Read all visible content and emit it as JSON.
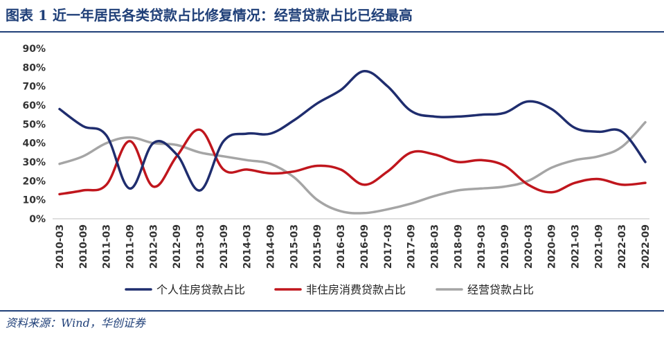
{
  "header": {
    "title": "图表 1 近一年居民各类贷款占比修复情况：经营贷款占比已经最高"
  },
  "footer": {
    "source": "资料来源：Wind，华创证券"
  },
  "colors": {
    "accent": "#1f3f78"
  },
  "chart_data": {
    "type": "line",
    "title": "",
    "xlabel": "",
    "ylabel": "",
    "ylim": [
      0,
      90
    ],
    "yticks": [
      "0%",
      "10%",
      "20%",
      "30%",
      "40%",
      "50%",
      "60%",
      "70%",
      "80%",
      "90%"
    ],
    "x": [
      "2010-03",
      "2010-09",
      "2011-03",
      "2011-09",
      "2012-03",
      "2012-09",
      "2013-03",
      "2013-09",
      "2014-03",
      "2014-09",
      "2015-03",
      "2015-09",
      "2016-03",
      "2016-09",
      "2017-03",
      "2017-09",
      "2018-03",
      "2018-09",
      "2019-03",
      "2019-09",
      "2020-03",
      "2020-09",
      "2021-03",
      "2021-09",
      "2022-03",
      "2022-09"
    ],
    "grid": false,
    "legend_position": "bottom",
    "series": [
      {
        "name": "个人住房贷款占比",
        "color": "#1f2d6e",
        "values": [
          58,
          49,
          44,
          16,
          40,
          34,
          15,
          41,
          45,
          45,
          52,
          61,
          68,
          78,
          70,
          57,
          54,
          54,
          55,
          56,
          62,
          58,
          48,
          46,
          46,
          30
        ]
      },
      {
        "name": "非住房消费贷款占比",
        "color": "#c0161d",
        "values": [
          13,
          15,
          18,
          41,
          17,
          33,
          47,
          26,
          26,
          24,
          25,
          28,
          26,
          18,
          25,
          35,
          34,
          30,
          31,
          28,
          18,
          14,
          19,
          21,
          18,
          19
        ]
      },
      {
        "name": "经营贷款占比",
        "color": "#a5a5a5",
        "values": [
          29,
          33,
          40,
          43,
          40,
          39,
          35,
          33,
          31,
          29,
          22,
          10,
          4,
          3,
          5,
          8,
          12,
          15,
          16,
          17,
          20,
          27,
          31,
          33,
          38,
          51
        ]
      }
    ]
  }
}
